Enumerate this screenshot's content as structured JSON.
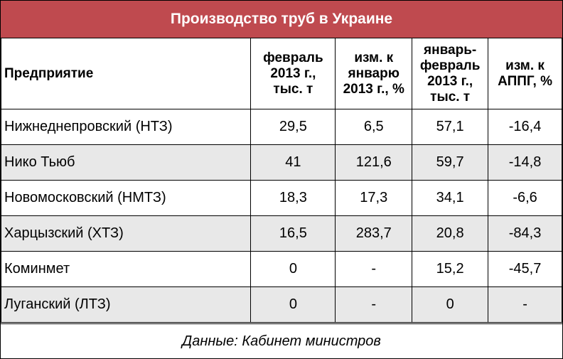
{
  "title": "Производство труб в Украине",
  "headers": {
    "company": "Предприятие",
    "feb_line1": "февраль",
    "feb_line2": "2013 г.,",
    "feb_line3": "тыс. т",
    "chg_jan_line1": "изм. к",
    "chg_jan_line2": "январю",
    "chg_jan_line3": "2013 г., %",
    "janfeb_line1": "январь-",
    "janfeb_line2": "февраль",
    "janfeb_line3": "2013 г.,",
    "janfeb_line4": "тыс. т",
    "chg_yoy_line1": "изм. к",
    "chg_yoy_line2": "АППГ, %"
  },
  "rows": [
    {
      "company": "Нижнеднепровский (НТЗ)",
      "feb": "29,5",
      "chg_jan": "6,5",
      "janfeb": "57,1",
      "chg_yoy": "-16,4"
    },
    {
      "company": "Нико Тьюб",
      "feb": "41",
      "chg_jan": "121,6",
      "janfeb": "59,7",
      "chg_yoy": "-14,8"
    },
    {
      "company": "Новомосковский (НМТЗ)",
      "feb": "18,3",
      "chg_jan": "17,3",
      "janfeb": "34,1",
      "chg_yoy": "-6,6"
    },
    {
      "company": "Харцызский (ХТЗ)",
      "feb": "16,5",
      "chg_jan": "283,7",
      "janfeb": "20,8",
      "chg_yoy": "-84,3"
    },
    {
      "company": "Коминмет",
      "feb": "0",
      "chg_jan": "-",
      "janfeb": "15,2",
      "chg_yoy": "-45,7"
    },
    {
      "company": "Луганский (ЛТЗ)",
      "feb": "0",
      "chg_jan": "-",
      "janfeb": "0",
      "chg_yoy": "-"
    }
  ],
  "source": "Данные: Кабинет министров",
  "colors": {
    "title_bg": "#bf4a4f",
    "shaded_row": "#e8e8e8"
  }
}
